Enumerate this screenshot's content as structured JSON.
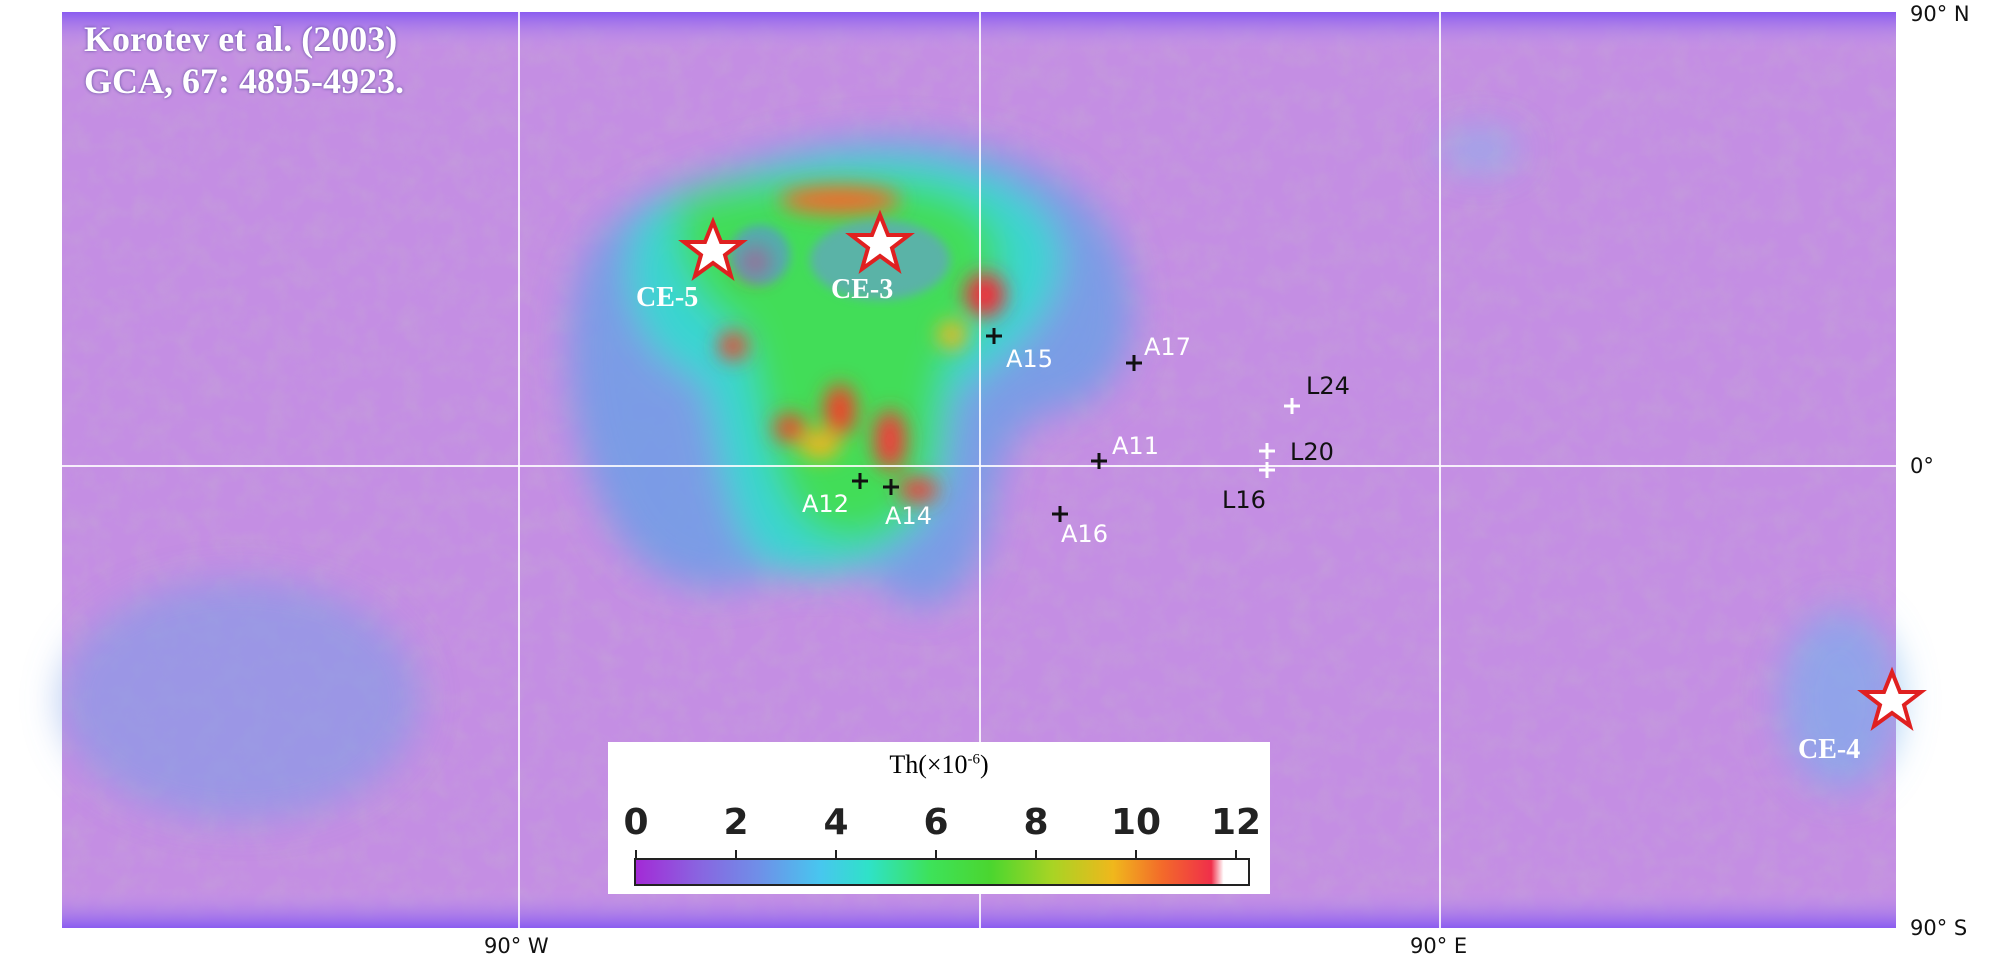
{
  "citation": {
    "line1": "Korotev et al. (2003)",
    "line2": "GCA, 67: 4895-4923."
  },
  "axes": {
    "lat_top": "90° N",
    "lat_mid": "0°",
    "lat_bottom": "90° S",
    "lon_left": "90° W",
    "lon_right": "90° E"
  },
  "colorbar": {
    "title_main": "Th(×10",
    "title_exp": "-6",
    "title_close": ")",
    "ticks": [
      "0",
      "2",
      "4",
      "6",
      "8",
      "10",
      "12"
    ],
    "range": [
      0,
      12
    ],
    "colors": [
      "#a32ad6",
      "#6f8fe8",
      "#48c6ef",
      "#3de25a",
      "#a8d424",
      "#f0b71c",
      "#f02f4a"
    ]
  },
  "chang_e_sites": [
    {
      "label": "CE-5",
      "color": "#e02020"
    },
    {
      "label": "CE-3",
      "color": "#e02020"
    },
    {
      "label": "CE-4",
      "color": "#e02020"
    }
  ],
  "apollo_sites": [
    {
      "label": "A11"
    },
    {
      "label": "A12"
    },
    {
      "label": "A14"
    },
    {
      "label": "A15"
    },
    {
      "label": "A16"
    },
    {
      "label": "A17"
    }
  ],
  "luna_sites": [
    {
      "label": "L16"
    },
    {
      "label": "L20"
    },
    {
      "label": "L24"
    }
  ]
}
